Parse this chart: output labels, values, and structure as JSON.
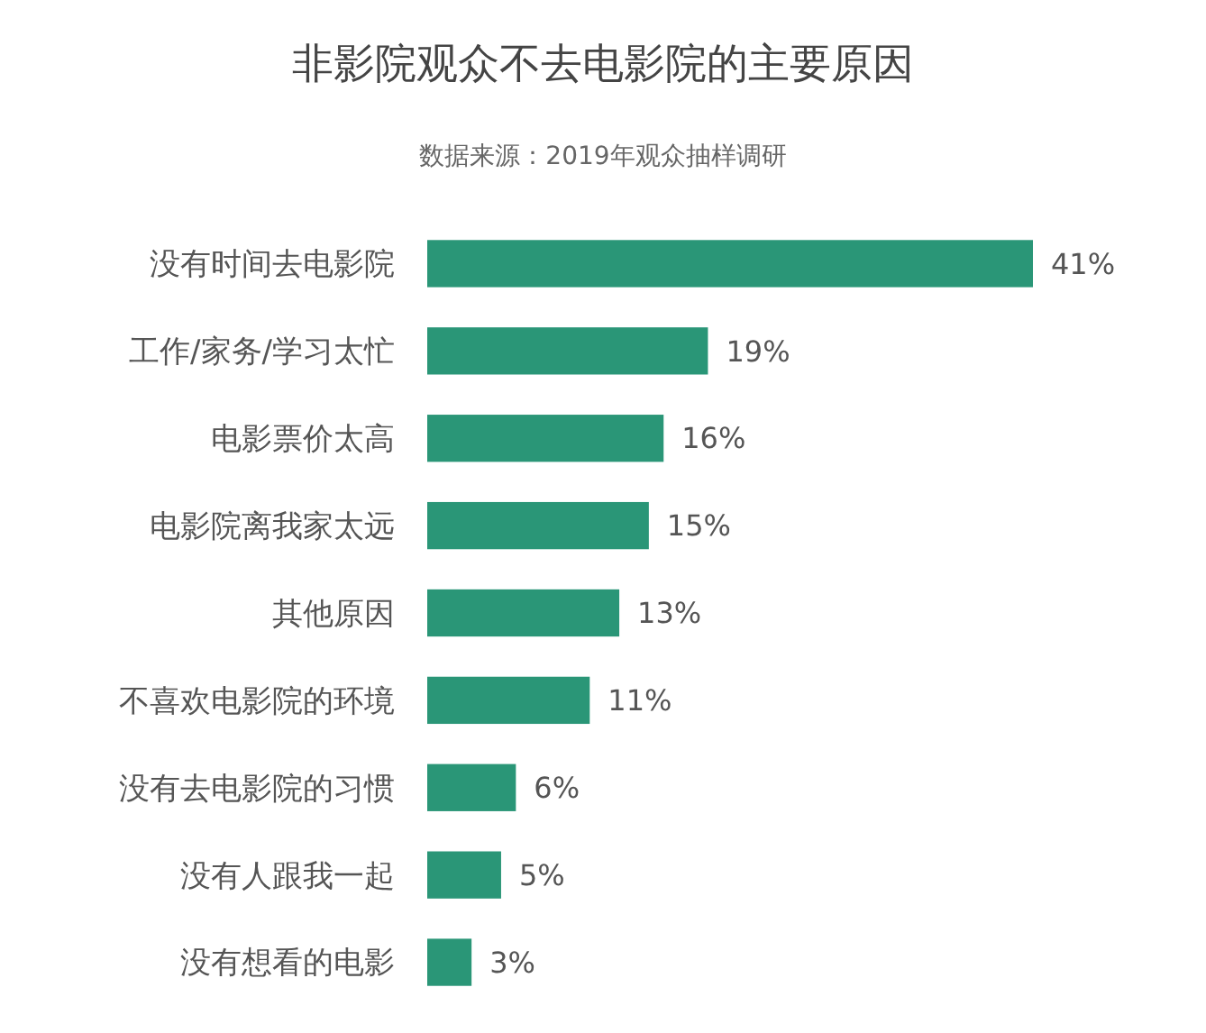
{
  "chart_data": {
    "type": "bar",
    "orientation": "horizontal",
    "title": "非影院观众不去电影院的主要原因",
    "subtitle": "数据来源：2019年观众抽样调研",
    "categories": [
      "没有时间去电影院",
      "工作/家务/学习太忙",
      "电影票价太高",
      "电影院离我家太远",
      "其他原因",
      "不喜欢电影院的环境",
      "没有去电影院的习惯",
      "没有人跟我一起",
      "没有想看的电影"
    ],
    "values": [
      41,
      19,
      16,
      15,
      13,
      11,
      6,
      5,
      3
    ],
    "value_labels": [
      "41%",
      "19%",
      "16%",
      "15%",
      "13%",
      "11%",
      "6%",
      "5%",
      "3%"
    ],
    "color": "#2a9677"
  }
}
